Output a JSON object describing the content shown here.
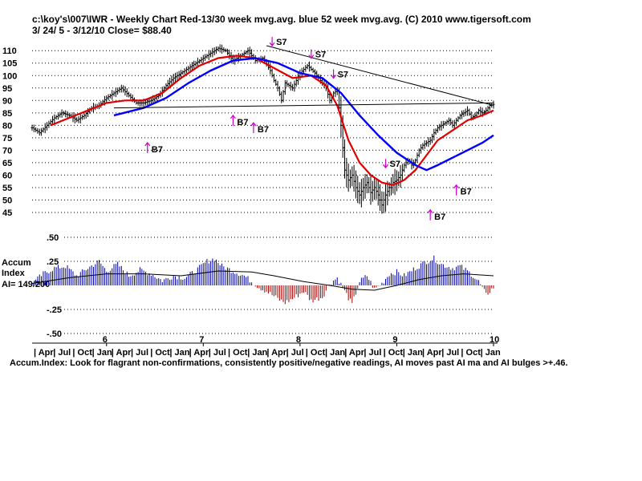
{
  "header": {
    "line1": "c:\\koy's\\007\\IWR  - Weekly Chart  Red-13/30 week mvg.avg.  blue 52 week mvg.avg.  (C) 2010 www.tigersoft.com",
    "line2": " 3/ 24/ 5 - 3/12/10   Close= $88.40"
  },
  "accum_label": {
    "line1": "Accum",
    "line2": "Index",
    "line3": "AI= 149/200"
  },
  "footer_note": "Accum.Index: Look for flagrant non-confirmations, consistently positive/negative readings, AI moves past AI ma and AI bulges >+.46.",
  "colors": {
    "ma13": "#ff0000",
    "ma30": "#e00000",
    "ma52": "#0000ff",
    "signal": "#cc00cc",
    "ai_positive": "#0000a0",
    "ai_negative": "#a00000"
  },
  "chart_data": [
    {
      "type": "ohlc",
      "ticker": "IWR",
      "title": "Weekly Chart",
      "date_range": [
        "2005-03-24",
        "2010-03-12"
      ],
      "close": 88.4,
      "ylim": [
        45,
        112
      ],
      "y_ticks": [
        110,
        105,
        100,
        95,
        90,
        85,
        80,
        75,
        70,
        65,
        60,
        55,
        50,
        45
      ],
      "year_labels": [
        "6",
        "7",
        "8",
        "9",
        "10"
      ],
      "month_labels": [
        "Apr",
        "Jul",
        "Oct",
        "Jan",
        "Apr",
        "Jul",
        "Oct",
        "Jan",
        "Apr",
        "Jul",
        "Oct",
        "Jan",
        "Apr",
        "Jul",
        "Oct",
        "Jan",
        "Apr",
        "Jul",
        "Oct",
        "Jan",
        "Apr",
        "Jul",
        "Oct",
        "Jan"
      ],
      "price_path": [
        [
          0,
          79
        ],
        [
          4,
          77
        ],
        [
          8,
          80
        ],
        [
          12,
          83
        ],
        [
          16,
          85
        ],
        [
          20,
          84
        ],
        [
          24,
          82
        ],
        [
          28,
          84
        ],
        [
          32,
          87
        ],
        [
          36,
          88
        ],
        [
          40,
          91
        ],
        [
          44,
          93
        ],
        [
          48,
          95
        ],
        [
          52,
          92
        ],
        [
          56,
          89
        ],
        [
          60,
          89
        ],
        [
          64,
          90
        ],
        [
          68,
          92
        ],
        [
          72,
          96
        ],
        [
          76,
          99
        ],
        [
          80,
          101
        ],
        [
          84,
          103
        ],
        [
          88,
          105
        ],
        [
          92,
          107
        ],
        [
          96,
          109
        ],
        [
          100,
          111
        ],
        [
          104,
          110
        ],
        [
          108,
          106
        ],
        [
          112,
          108
        ],
        [
          116,
          110
        ],
        [
          120,
          106
        ],
        [
          124,
          107
        ],
        [
          128,
          102
        ],
        [
          130,
          98
        ],
        [
          132,
          95
        ],
        [
          134,
          90
        ],
        [
          136,
          97
        ],
        [
          140,
          95
        ],
        [
          144,
          101
        ],
        [
          148,
          104
        ],
        [
          152,
          101
        ],
        [
          156,
          97
        ],
        [
          158,
          95
        ],
        [
          160,
          90
        ],
        [
          162,
          93
        ],
        [
          164,
          94
        ],
        [
          166,
          80
        ],
        [
          168,
          62
        ],
        [
          170,
          58
        ],
        [
          172,
          60
        ],
        [
          174,
          55
        ],
        [
          176,
          52
        ],
        [
          178,
          55
        ],
        [
          180,
          57
        ],
        [
          182,
          53
        ],
        [
          184,
          55
        ],
        [
          186,
          52
        ],
        [
          188,
          48
        ],
        [
          190,
          52
        ],
        [
          192,
          55
        ],
        [
          194,
          57
        ],
        [
          196,
          58
        ],
        [
          198,
          60
        ],
        [
          200,
          64
        ],
        [
          202,
          66
        ],
        [
          204,
          64
        ],
        [
          206,
          66
        ],
        [
          208,
          70
        ],
        [
          210,
          72
        ],
        [
          212,
          73
        ],
        [
          214,
          74
        ],
        [
          216,
          77
        ],
        [
          218,
          79
        ],
        [
          220,
          80
        ],
        [
          222,
          81
        ],
        [
          224,
          82
        ],
        [
          226,
          80
        ],
        [
          228,
          82
        ],
        [
          230,
          84
        ],
        [
          232,
          85
        ],
        [
          234,
          86
        ],
        [
          236,
          83
        ],
        [
          238,
          84
        ],
        [
          240,
          86
        ],
        [
          242,
          85
        ],
        [
          244,
          86
        ],
        [
          246,
          88
        ],
        [
          248,
          88.4
        ]
      ],
      "ma_13_30": [
        [
          10,
          80
        ],
        [
          20,
          83
        ],
        [
          30,
          86
        ],
        [
          40,
          89
        ],
        [
          50,
          90
        ],
        [
          60,
          90
        ],
        [
          70,
          93
        ],
        [
          80,
          99
        ],
        [
          90,
          104
        ],
        [
          100,
          107
        ],
        [
          110,
          108
        ],
        [
          120,
          107
        ],
        [
          130,
          103
        ],
        [
          140,
          99
        ],
        [
          150,
          100
        ],
        [
          158,
          96
        ],
        [
          164,
          88
        ],
        [
          170,
          74
        ],
        [
          176,
          65
        ],
        [
          182,
          60
        ],
        [
          188,
          57
        ],
        [
          194,
          56
        ],
        [
          200,
          58
        ],
        [
          206,
          62
        ],
        [
          212,
          68
        ],
        [
          218,
          74
        ],
        [
          226,
          78
        ],
        [
          234,
          82
        ],
        [
          242,
          84
        ],
        [
          248,
          86
        ]
      ],
      "ma_52": [
        [
          44,
          84
        ],
        [
          60,
          87
        ],
        [
          72,
          91
        ],
        [
          84,
          97
        ],
        [
          96,
          102
        ],
        [
          108,
          106
        ],
        [
          120,
          107
        ],
        [
          132,
          105
        ],
        [
          144,
          101
        ],
        [
          156,
          99
        ],
        [
          166,
          93
        ],
        [
          176,
          84
        ],
        [
          186,
          76
        ],
        [
          196,
          69
        ],
        [
          206,
          64
        ],
        [
          212,
          62
        ],
        [
          218,
          64
        ],
        [
          226,
          67
        ],
        [
          234,
          70
        ],
        [
          242,
          73
        ],
        [
          248,
          76
        ]
      ],
      "trendlines": [
        {
          "from": [
            126,
            112
          ],
          "to": [
            248,
            88
          ]
        },
        {
          "from": [
            44,
            87
          ],
          "to": [
            248,
            89
          ]
        }
      ],
      "signals": [
        {
          "label": "S7",
          "week": 129,
          "price": 111,
          "kind": "sell"
        },
        {
          "label": "S7",
          "week": 150,
          "price": 106,
          "kind": "sell"
        },
        {
          "label": "S7",
          "week": 162,
          "price": 98,
          "kind": "sell"
        },
        {
          "label": "S7",
          "week": 190,
          "price": 62,
          "kind": "sell"
        },
        {
          "label": "B7",
          "week": 62,
          "price": 74,
          "kind": "buy"
        },
        {
          "label": "B7",
          "week": 108,
          "price": 85,
          "kind": "buy"
        },
        {
          "label": "B7",
          "week": 119,
          "price": 82,
          "kind": "buy"
        },
        {
          "label": "B7",
          "week": 228,
          "price": 57,
          "kind": "buy"
        },
        {
          "label": "B7",
          "week": 214,
          "price": 47,
          "kind": "buy"
        }
      ]
    },
    {
      "type": "bar",
      "title": "Accum Index",
      "ylim": [
        -0.5,
        0.5
      ],
      "y_ticks": [
        ".50",
        ".25",
        "",
        "-.25",
        "-.50"
      ],
      "y_tick_values": [
        0.5,
        0.25,
        0,
        -0.25,
        -0.5
      ],
      "ai_value": "149/200",
      "ai_path": [
        [
          0,
          0.02
        ],
        [
          6,
          0.12
        ],
        [
          12,
          0.18
        ],
        [
          18,
          0.2
        ],
        [
          24,
          0.1
        ],
        [
          30,
          0.18
        ],
        [
          36,
          0.25
        ],
        [
          40,
          0.15
        ],
        [
          46,
          0.22
        ],
        [
          52,
          0.1
        ],
        [
          58,
          0.16
        ],
        [
          64,
          0.12
        ],
        [
          70,
          0.05
        ],
        [
          76,
          0.1
        ],
        [
          82,
          0.08
        ],
        [
          88,
          0.15
        ],
        [
          94,
          0.25
        ],
        [
          98,
          0.28
        ],
        [
          102,
          0.2
        ],
        [
          108,
          0.15
        ],
        [
          114,
          0.1
        ],
        [
          118,
          0.04
        ],
        [
          122,
          -0.02
        ],
        [
          126,
          -0.06
        ],
        [
          132,
          -0.14
        ],
        [
          136,
          -0.18
        ],
        [
          140,
          -0.14
        ],
        [
          146,
          -0.06
        ],
        [
          150,
          -0.16
        ],
        [
          156,
          -0.12
        ],
        [
          160,
          0.02
        ],
        [
          164,
          0.08
        ],
        [
          168,
          -0.06
        ],
        [
          172,
          -0.2
        ],
        [
          176,
          0.04
        ],
        [
          180,
          0.1
        ],
        [
          184,
          -0.04
        ],
        [
          188,
          0.02
        ],
        [
          192,
          0.12
        ],
        [
          196,
          0.14
        ],
        [
          200,
          0.1
        ],
        [
          206,
          0.18
        ],
        [
          212,
          0.25
        ],
        [
          216,
          0.28
        ],
        [
          220,
          0.22
        ],
        [
          226,
          0.18
        ],
        [
          230,
          0.2
        ],
        [
          236,
          0.12
        ],
        [
          240,
          0.04
        ],
        [
          244,
          -0.1
        ],
        [
          248,
          -0.02
        ]
      ],
      "ai_ma": [
        [
          0,
          0.02
        ],
        [
          20,
          0.08
        ],
        [
          40,
          0.12
        ],
        [
          60,
          0.12
        ],
        [
          80,
          0.1
        ],
        [
          100,
          0.15
        ],
        [
          118,
          0.14
        ],
        [
          130,
          0.1
        ],
        [
          146,
          0.04
        ],
        [
          160,
          0.0
        ],
        [
          172,
          -0.04
        ],
        [
          184,
          -0.05
        ],
        [
          196,
          0.0
        ],
        [
          208,
          0.06
        ],
        [
          220,
          0.1
        ],
        [
          232,
          0.12
        ],
        [
          248,
          0.1
        ]
      ]
    }
  ]
}
